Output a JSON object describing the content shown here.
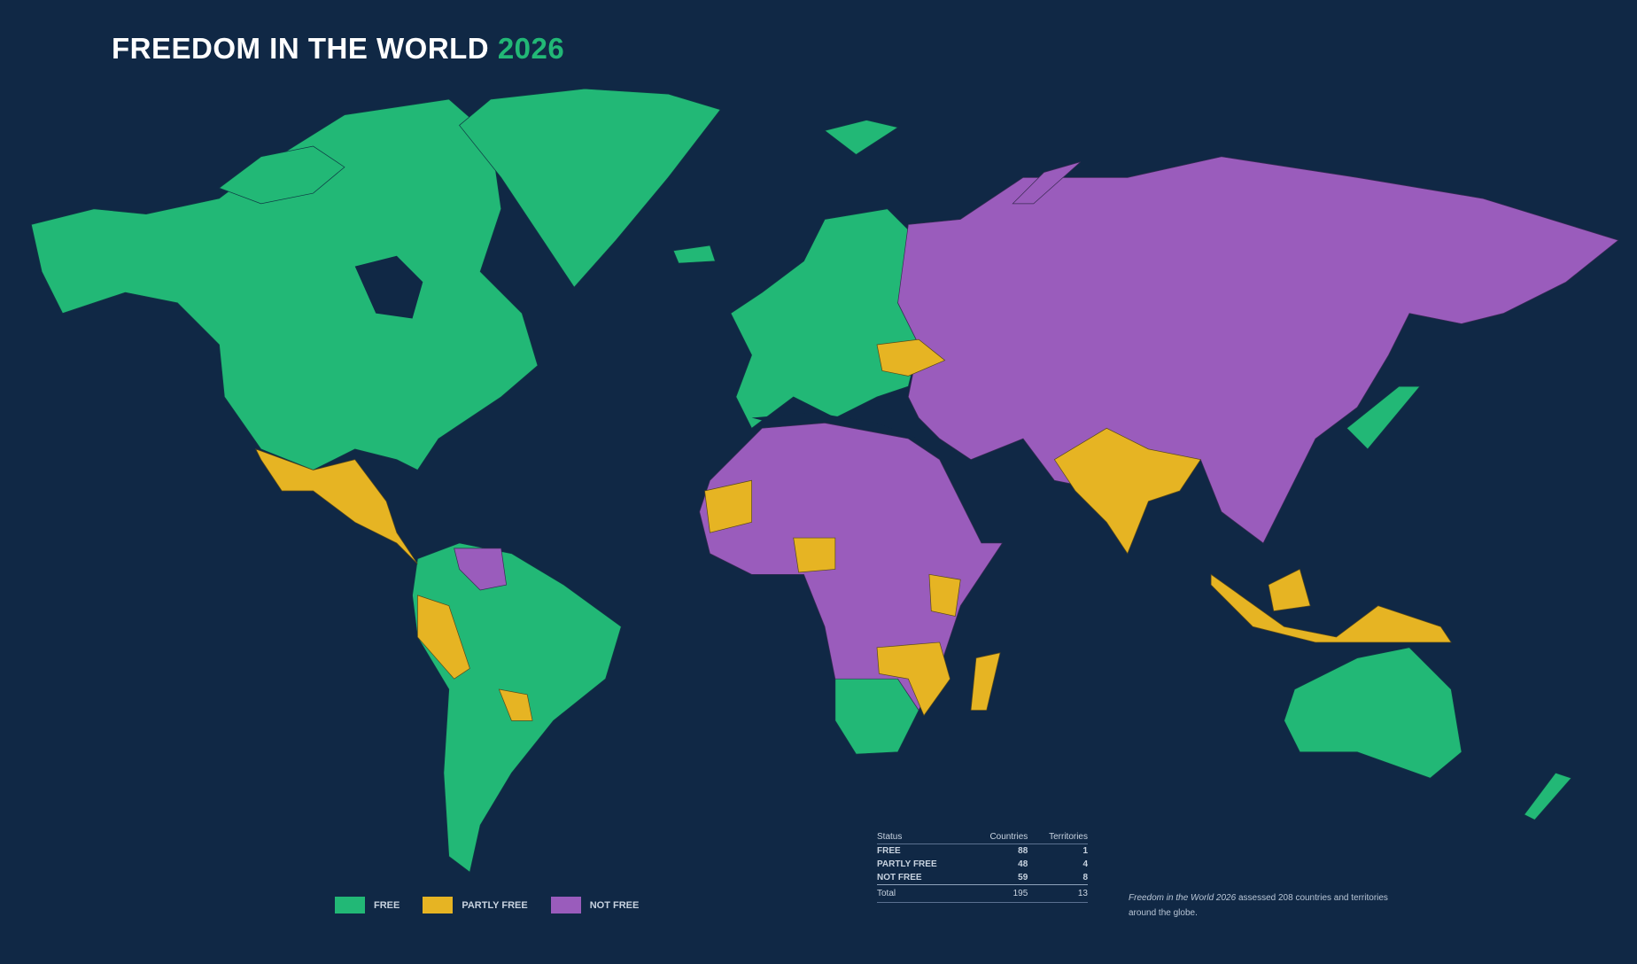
{
  "title": {
    "main": "FREEDOM IN THE WORLD",
    "year": "2026"
  },
  "colors": {
    "background": "#102845",
    "free": "#22b876",
    "partly_free": "#e6b423",
    "not_free": "#9a5cbc"
  },
  "legend": [
    {
      "label": "FREE",
      "color": "#22b876"
    },
    {
      "label": "PARTLY FREE",
      "color": "#e6b423"
    },
    {
      "label": "NOT FREE",
      "color": "#9a5cbc"
    }
  ],
  "stats": {
    "headers": [
      "Status",
      "Countries",
      "Territories"
    ],
    "rows": [
      {
        "status": "FREE",
        "countries": "88",
        "territories": "1"
      },
      {
        "status": "PARTLY FREE",
        "countries": "48",
        "territories": "4"
      },
      {
        "status": "NOT FREE",
        "countries": "59",
        "territories": "8"
      }
    ],
    "total": {
      "status": "Total",
      "countries": "195",
      "territories": "13"
    }
  },
  "note": {
    "emph": "Freedom in the World 2026",
    "text": " assessed 208 countries and territories around the globe."
  }
}
